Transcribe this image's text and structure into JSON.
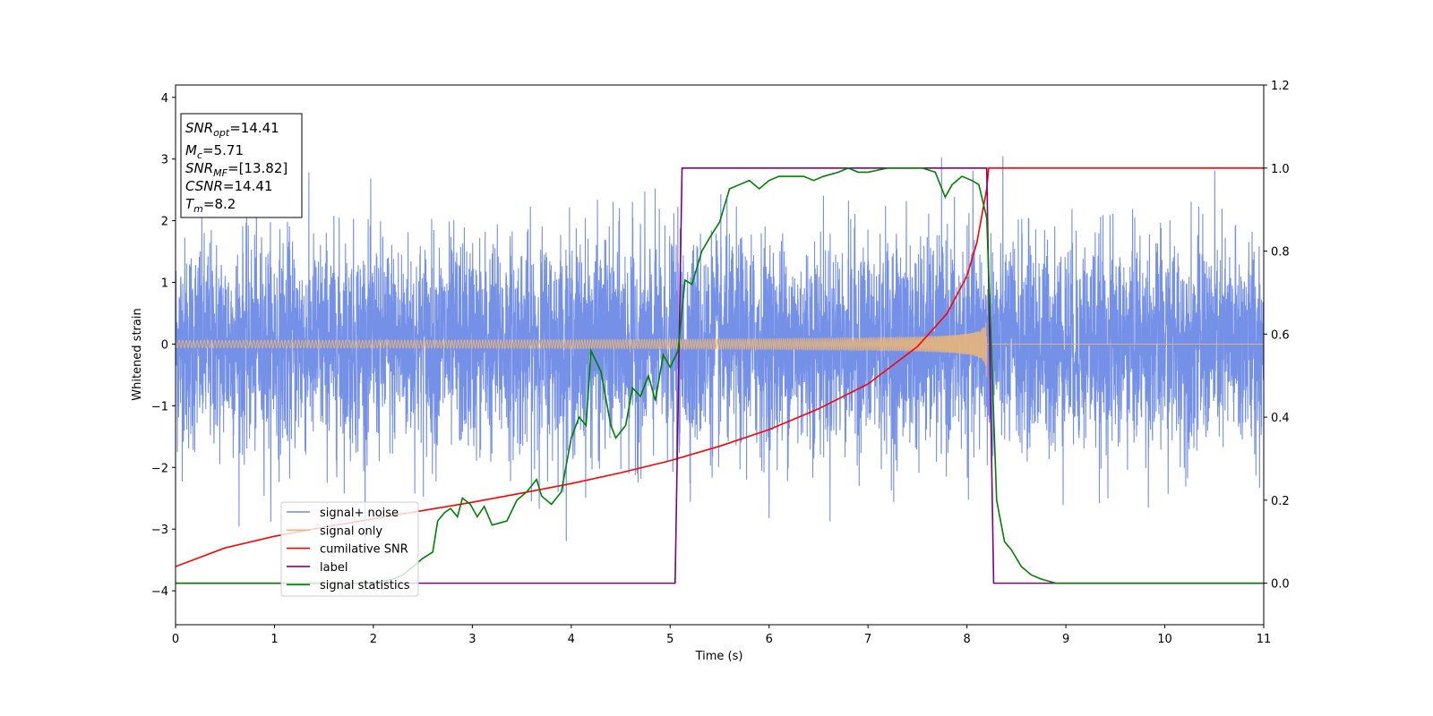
{
  "chart_data": {
    "type": "line",
    "xlabel": "Time (s)",
    "ylabel": "Whitened strain",
    "xlim": [
      0,
      11
    ],
    "ylim_left": [
      -4.55,
      4.2
    ],
    "ylim_right": [
      -0.1,
      1.2
    ],
    "x_ticks": [
      0,
      1,
      2,
      3,
      4,
      5,
      6,
      7,
      8,
      9,
      10,
      11
    ],
    "y_ticks_left": [
      -4,
      -3,
      -2,
      -1,
      0,
      1,
      2,
      3,
      4
    ],
    "y_ticks_right": [
      "0.0",
      "0.2",
      "0.4",
      "0.6",
      "0.8",
      "1.0",
      "1.2"
    ],
    "legend_position": "lower-left",
    "annotation": {
      "snr_opt": {
        "main": "SNR",
        "sub": "opt",
        "value": "=14.41"
      },
      "mc": {
        "main": "M",
        "sub": "c",
        "value": "=5.71"
      },
      "snr_mf": {
        "main": "SNR",
        "sub": "MF",
        "value": "=[13.82]"
      },
      "csnr": {
        "main": "CSNR",
        "sub": "",
        "value": "=14.41"
      },
      "tm": {
        "main": "T",
        "sub": "m",
        "value": "=8.2"
      }
    },
    "series": [
      {
        "name": "signal+ noise",
        "axis": "left",
        "color": "#6e8ae6",
        "style": "noise",
        "amplitude_std": 0.85,
        "range": [
          -4.1,
          3.8
        ]
      },
      {
        "name": "signal only",
        "axis": "left",
        "color": "#e8b57a",
        "style": "chirp",
        "merger_time": 8.2,
        "amplitude_start": 0.06,
        "amplitude_peak": 1.0
      },
      {
        "name": "cumilative SNR",
        "axis": "right",
        "color": "#ff0000",
        "points": [
          [
            0,
            0.04
          ],
          [
            0.5,
            0.085
          ],
          [
            1,
            0.113
          ],
          [
            1.5,
            0.135
          ],
          [
            2,
            0.155
          ],
          [
            2.5,
            0.175
          ],
          [
            3,
            0.195
          ],
          [
            3.5,
            0.217
          ],
          [
            4,
            0.24
          ],
          [
            4.5,
            0.266
          ],
          [
            5,
            0.295
          ],
          [
            5.5,
            0.33
          ],
          [
            6,
            0.37
          ],
          [
            6.5,
            0.42
          ],
          [
            7,
            0.48
          ],
          [
            7.5,
            0.57
          ],
          [
            7.8,
            0.65
          ],
          [
            8,
            0.74
          ],
          [
            8.1,
            0.82
          ],
          [
            8.2,
            0.95
          ],
          [
            8.22,
            1.0
          ],
          [
            11,
            1.0
          ]
        ]
      },
      {
        "name": "label",
        "axis": "right",
        "color": "#800080",
        "points": [
          [
            0,
            0
          ],
          [
            5.05,
            0
          ],
          [
            5.12,
            1
          ],
          [
            8.2,
            1
          ],
          [
            8.27,
            0
          ],
          [
            11,
            0
          ]
        ]
      },
      {
        "name": "signal statistics",
        "axis": "right",
        "color": "#008000",
        "points": [
          [
            0,
            0
          ],
          [
            2.0,
            0.0
          ],
          [
            2.2,
            0.01
          ],
          [
            2.3,
            0.02
          ],
          [
            2.4,
            0.04
          ],
          [
            2.5,
            0.06
          ],
          [
            2.6,
            0.075
          ],
          [
            2.65,
            0.15
          ],
          [
            2.72,
            0.17
          ],
          [
            2.78,
            0.18
          ],
          [
            2.85,
            0.16
          ],
          [
            2.9,
            0.205
          ],
          [
            2.98,
            0.19
          ],
          [
            3.05,
            0.16
          ],
          [
            3.12,
            0.185
          ],
          [
            3.2,
            0.14
          ],
          [
            3.35,
            0.15
          ],
          [
            3.45,
            0.2
          ],
          [
            3.55,
            0.22
          ],
          [
            3.65,
            0.25
          ],
          [
            3.7,
            0.21
          ],
          [
            3.8,
            0.19
          ],
          [
            3.9,
            0.22
          ],
          [
            4.0,
            0.35
          ],
          [
            4.08,
            0.4
          ],
          [
            4.15,
            0.38
          ],
          [
            4.2,
            0.56
          ],
          [
            4.3,
            0.51
          ],
          [
            4.4,
            0.38
          ],
          [
            4.45,
            0.35
          ],
          [
            4.55,
            0.38
          ],
          [
            4.62,
            0.47
          ],
          [
            4.7,
            0.45
          ],
          [
            4.78,
            0.5
          ],
          [
            4.85,
            0.44
          ],
          [
            4.93,
            0.55
          ],
          [
            5.0,
            0.52
          ],
          [
            5.08,
            0.56
          ],
          [
            5.15,
            0.73
          ],
          [
            5.22,
            0.72
          ],
          [
            5.32,
            0.8
          ],
          [
            5.42,
            0.84
          ],
          [
            5.5,
            0.87
          ],
          [
            5.6,
            0.95
          ],
          [
            5.7,
            0.96
          ],
          [
            5.8,
            0.97
          ],
          [
            5.9,
            0.95
          ],
          [
            6.0,
            0.97
          ],
          [
            6.1,
            0.98
          ],
          [
            6.2,
            0.98
          ],
          [
            6.35,
            0.98
          ],
          [
            6.45,
            0.97
          ],
          [
            6.55,
            0.98
          ],
          [
            6.7,
            0.99
          ],
          [
            6.8,
            1.0
          ],
          [
            6.9,
            0.99
          ],
          [
            7.0,
            0.99
          ],
          [
            7.2,
            1.0
          ],
          [
            7.4,
            1.0
          ],
          [
            7.55,
            1.0
          ],
          [
            7.68,
            0.99
          ],
          [
            7.78,
            0.93
          ],
          [
            7.85,
            0.96
          ],
          [
            7.95,
            0.98
          ],
          [
            8.05,
            0.97
          ],
          [
            8.12,
            0.96
          ],
          [
            8.2,
            0.88
          ],
          [
            8.3,
            0.2
          ],
          [
            8.38,
            0.1
          ],
          [
            8.45,
            0.08
          ],
          [
            8.55,
            0.04
          ],
          [
            8.65,
            0.02
          ],
          [
            8.75,
            0.01
          ],
          [
            8.9,
            0.0
          ],
          [
            11,
            0.0
          ]
        ]
      }
    ]
  }
}
